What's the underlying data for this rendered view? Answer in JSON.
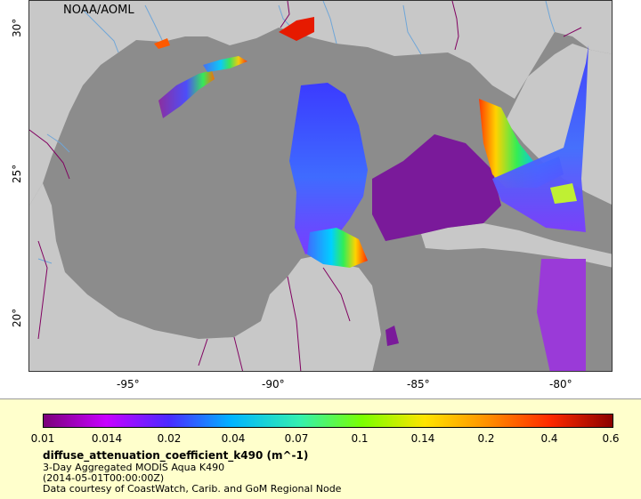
{
  "map": {
    "credit": "NOAA/AOML",
    "lon_ticks": [
      "-95°",
      "-90°",
      "-85°",
      "-80°"
    ],
    "lat_ticks": [
      "30°",
      "25°",
      "20°"
    ]
  },
  "legend": {
    "colorbar_ticks": [
      "0.01",
      "0.014",
      "0.02",
      "0.04",
      "0.07",
      "0.1",
      "0.14",
      "0.2",
      "0.4",
      "0.6"
    ],
    "variable": "diffuse_attenuation_coefficient_k490 (m^-1)",
    "dataset": "3-Day Aggregated MODIS Aqua K490",
    "time": "(2014-05-01T00:00:00Z)",
    "courtesy": "Data courtesy of CoastWatch, Carib. and GoM Regional Node"
  },
  "colors": {
    "land": "#c8c8c8",
    "ocean_no_data": "#8c8c8c",
    "rivers": "#6fa6d8",
    "borders": "#800060",
    "legend_bg": "#ffffcc"
  }
}
